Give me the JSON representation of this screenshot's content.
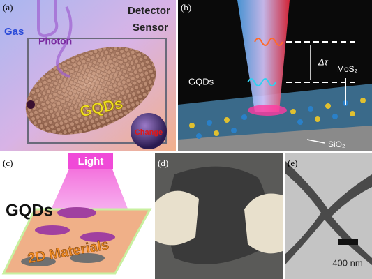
{
  "panel_a": {
    "label": "(a)",
    "gas": "Gas",
    "photon": "Photon",
    "detector": "Detector",
    "sensor": "Sensor",
    "gqds": "GQDs",
    "change": "Change"
  },
  "panel_b": {
    "label": "(b)",
    "delta_tau": "Δτ",
    "gqds": "GQDs",
    "mos2": "MoS₂",
    "sio2": "SiO₂"
  },
  "panel_c": {
    "label": "(c)",
    "light": "Light",
    "gqds": "GQDs",
    "materials": "2D Materials"
  },
  "panel_d": {
    "label": "(d)"
  },
  "panel_e": {
    "label": "(e)",
    "scale": "400 nm"
  }
}
